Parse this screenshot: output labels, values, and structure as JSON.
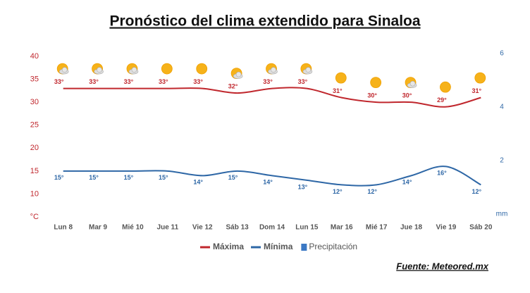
{
  "chart_data": {
    "type": "line",
    "title": "Pronóstico del clima extendido para Sinaloa",
    "source": "Fuente: Meteored.mx",
    "categories": [
      "Lun 8",
      "Mar 9",
      "Mié 10",
      "Jue 11",
      "Vie 12",
      "Sáb 13",
      "Dom 14",
      "Lun 15",
      "Mar 16",
      "Mié 17",
      "Jue 18",
      "Vie 19",
      "Sáb 20"
    ],
    "series": [
      {
        "name": "Máxima",
        "color": "#c0272d",
        "values": [
          33,
          33,
          33,
          33,
          33,
          32,
          33,
          33,
          31,
          30,
          30,
          29,
          31
        ],
        "value_labels": [
          "33°",
          "33°",
          "33°",
          "33°",
          "33°",
          "32°",
          "33°",
          "33°",
          "31°",
          "30°",
          "30°",
          "29°",
          "31°"
        ]
      },
      {
        "name": "Mínima",
        "color": "#2e67a6",
        "values": [
          15,
          15,
          15,
          15,
          14,
          15,
          14,
          13,
          12,
          12,
          14,
          16,
          12
        ],
        "value_labels": [
          "15°",
          "15°",
          "15°",
          "15°",
          "14°",
          "15°",
          "14°",
          "13°",
          "12°",
          "12°",
          "14°",
          "16°",
          "12°"
        ]
      },
      {
        "name": "Precipitación",
        "color": "#3b78c4",
        "axis": "y2",
        "values": [
          null,
          null,
          null,
          null,
          null,
          null,
          null,
          null,
          null,
          null,
          null,
          null,
          null
        ]
      }
    ],
    "ylim": [
      5,
      40
    ],
    "yticks": [
      {
        "value": 5,
        "label": "°C"
      },
      10,
      15,
      20,
      25,
      30,
      35,
      40
    ],
    "y2lim": [
      0,
      6
    ],
    "y2ticks": [
      {
        "value": 0,
        "label": "mm"
      },
      2,
      4,
      6
    ],
    "grid": false,
    "legend": "bottom"
  }
}
